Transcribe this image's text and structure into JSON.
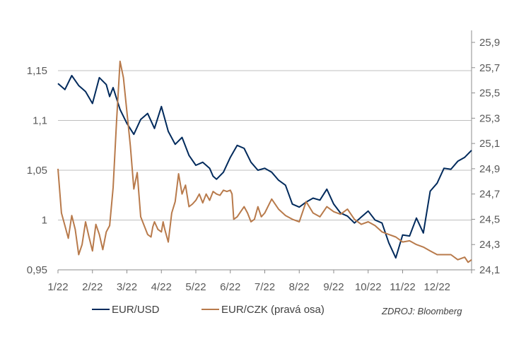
{
  "chart_data": {
    "type": "line",
    "legend": {
      "placement": "bottom",
      "items": [
        {
          "label": "EUR/USD",
          "color": "#002a5c"
        },
        {
          "label": "EUR/CZK (pravá osa)",
          "color": "#b87a4b"
        }
      ]
    },
    "source": "ZDROJ: Bloomberg",
    "x_axis": {
      "tick_labels": [
        "1/22",
        "2/22",
        "3/22",
        "4/22",
        "5/22",
        "6/22",
        "7/22",
        "8/22",
        "9/22",
        "10/22",
        "11/22",
        "12/22"
      ],
      "range": [
        "1/22",
        "12/22"
      ]
    },
    "y_left": {
      "range": [
        0.95,
        1.2
      ],
      "ticks": [
        0.95,
        1.0,
        1.05,
        1.1,
        1.15
      ],
      "tick_labels": [
        "0,95",
        "1",
        "1,05",
        "1,1",
        "1,15"
      ]
    },
    "y_right": {
      "range": [
        24.1,
        26.0
      ],
      "ticks": [
        24.1,
        24.3,
        24.5,
        24.7,
        24.9,
        25.1,
        25.3,
        25.5,
        25.7,
        25.9
      ],
      "tick_labels": [
        "24,1",
        "24,3",
        "24,5",
        "24,7",
        "24,9",
        "25,1",
        "25,3",
        "25,5",
        "25,7",
        "25,9"
      ]
    },
    "gridlines": "horizontal, left axis",
    "series": [
      {
        "name": "EUR/USD",
        "axis": "left",
        "color": "#002a5c",
        "x": [
          0,
          0.2,
          0.4,
          0.6,
          0.8,
          1.0,
          1.2,
          1.4,
          1.5,
          1.6,
          1.8,
          2.0,
          2.2,
          2.4,
          2.6,
          2.8,
          3.0,
          3.2,
          3.4,
          3.6,
          3.8,
          4.0,
          4.2,
          4.4,
          4.5,
          4.6,
          4.8,
          5.0,
          5.2,
          5.4,
          5.6,
          5.8,
          6.0,
          6.2,
          6.4,
          6.6,
          6.8,
          7.0,
          7.2,
          7.4,
          7.6,
          7.8,
          8.0,
          8.2,
          8.4,
          8.6,
          8.8,
          9.0,
          9.2,
          9.4,
          9.6,
          9.8,
          10.0,
          10.2,
          10.4,
          10.6,
          10.8,
          11.0,
          11.2,
          11.4,
          11.6,
          11.8,
          12.0
        ],
        "values": [
          1.137,
          1.131,
          1.145,
          1.135,
          1.129,
          1.117,
          1.143,
          1.136,
          1.124,
          1.133,
          1.111,
          1.097,
          1.086,
          1.101,
          1.107,
          1.092,
          1.114,
          1.089,
          1.076,
          1.083,
          1.065,
          1.055,
          1.058,
          1.052,
          1.044,
          1.041,
          1.048,
          1.063,
          1.075,
          1.072,
          1.058,
          1.05,
          1.052,
          1.048,
          1.04,
          1.035,
          1.016,
          1.013,
          1.018,
          1.022,
          1.02,
          1.031,
          1.016,
          1.007,
          1.004,
          0.997,
          1.003,
          1.009,
          1.0,
          0.997,
          0.977,
          0.962,
          0.985,
          0.984,
          1.002,
          0.987,
          1.029,
          1.037,
          1.052,
          1.051,
          1.059,
          1.063,
          1.07
        ]
      },
      {
        "name": "EUR/CZK (pravá osa)",
        "axis": "right",
        "color": "#b87a4b",
        "x": [
          0,
          0.1,
          0.2,
          0.3,
          0.4,
          0.5,
          0.6,
          0.7,
          0.8,
          0.9,
          1.0,
          1.1,
          1.2,
          1.3,
          1.4,
          1.5,
          1.6,
          1.7,
          1.8,
          1.9,
          2.0,
          2.1,
          2.2,
          2.3,
          2.4,
          2.5,
          2.6,
          2.7,
          2.75,
          2.8,
          2.9,
          3.0,
          3.05,
          3.1,
          3.2,
          3.3,
          3.4,
          3.5,
          3.6,
          3.7,
          3.8,
          3.9,
          4.0,
          4.1,
          4.2,
          4.3,
          4.4,
          4.5,
          4.6,
          4.7,
          4.8,
          4.9,
          5.0,
          5.05,
          5.1,
          5.2,
          5.3,
          5.4,
          5.5,
          5.6,
          5.7,
          5.8,
          5.9,
          6.0,
          6.2,
          6.4,
          6.6,
          6.8,
          7.0,
          7.2,
          7.4,
          7.6,
          7.8,
          8.0,
          8.2,
          8.4,
          8.6,
          8.8,
          9.0,
          9.2,
          9.4,
          9.6,
          9.8,
          10.0,
          10.2,
          10.4,
          10.6,
          10.8,
          11.0,
          11.2,
          11.4,
          11.6,
          11.8,
          11.9,
          12.0
        ],
        "values": [
          24.9,
          24.55,
          24.45,
          24.35,
          24.53,
          24.42,
          24.22,
          24.3,
          24.48,
          24.36,
          24.25,
          24.46,
          24.38,
          24.26,
          24.4,
          24.45,
          24.75,
          25.28,
          25.75,
          25.62,
          25.35,
          25.08,
          24.74,
          24.87,
          24.52,
          24.45,
          24.38,
          24.36,
          24.44,
          24.48,
          24.42,
          24.4,
          24.48,
          24.42,
          24.32,
          24.55,
          24.64,
          24.86,
          24.7,
          24.77,
          24.6,
          24.62,
          24.65,
          24.7,
          24.63,
          24.7,
          24.65,
          24.72,
          24.7,
          24.69,
          24.73,
          24.72,
          24.73,
          24.7,
          24.5,
          24.52,
          24.56,
          24.6,
          24.55,
          24.48,
          24.5,
          24.6,
          24.52,
          24.55,
          24.66,
          24.58,
          24.53,
          24.5,
          24.48,
          24.64,
          24.55,
          24.52,
          24.6,
          24.56,
          24.54,
          24.58,
          24.5,
          24.46,
          24.48,
          24.45,
          24.4,
          24.38,
          24.36,
          24.32,
          24.33,
          24.3,
          24.28,
          24.25,
          24.22,
          24.22,
          24.22,
          24.18,
          24.2,
          24.16,
          24.18
        ]
      }
    ]
  }
}
